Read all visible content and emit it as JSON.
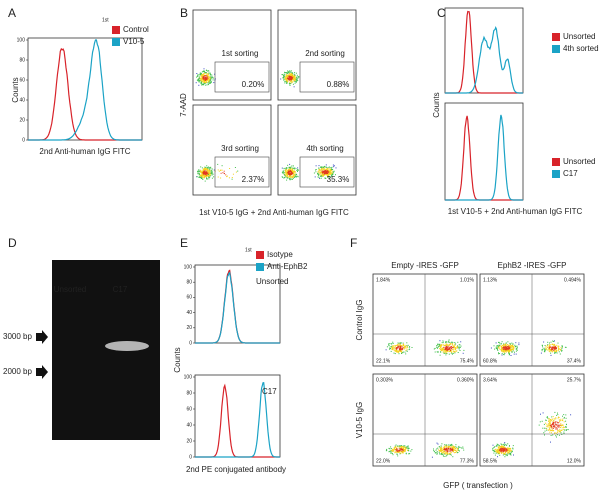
{
  "panels": {
    "A": {
      "label": "A",
      "legend_title": "1st",
      "legend": [
        "Control",
        "V10-5"
      ],
      "y_label": "Counts",
      "y_ticks": [
        0,
        20,
        40,
        60,
        80,
        100
      ],
      "x_label": "2nd Anti-human IgG FITC"
    },
    "B": {
      "label": "B",
      "y_label": "7-AAD",
      "gates": [
        {
          "name": "1st sorting",
          "percent": "0.20%"
        },
        {
          "name": "2nd sorting",
          "percent": "0.88%"
        },
        {
          "name": "3rd sorting",
          "percent": "2.37%"
        },
        {
          "name": "4th sorting",
          "percent": "35.3%"
        }
      ],
      "x_label": "1st V10-5 IgG + 2nd Anti-human IgG FITC"
    },
    "C": {
      "label": "C",
      "legend_top": [
        "Unsorted",
        "4th sorted"
      ],
      "legend_bottom": [
        "Unsorted",
        "C17"
      ],
      "y_label": "Counts",
      "x_label": "1st V10-5 + 2nd Anti-human IgG FITC"
    },
    "D": {
      "label": "D",
      "lanes": [
        "Unsorted",
        "C17"
      ],
      "markers": [
        "3000 bp",
        "2000 bp"
      ]
    },
    "E": {
      "label": "E",
      "legend_title": "1st",
      "legend": [
        "Isotype",
        "Anti-EphB2"
      ],
      "top_title": "Unsorted",
      "bottom_title": "C17",
      "y_label": "Counts",
      "y_ticks": [
        0,
        20,
        40,
        60,
        80,
        100
      ],
      "x_label": "2nd PE conjugated antibody"
    },
    "F": {
      "label": "F",
      "columns": [
        "Empty -IRES -GFP",
        "EphB2 -IRES -GFP"
      ],
      "rows": [
        "Control IgG",
        "V10-5 IgG"
      ],
      "quadrants": [
        [
          "1.84%",
          "1.01%",
          "22.1%",
          "75.4%"
        ],
        [
          "1.13%",
          "0.494%",
          "60.8%",
          "37.4%"
        ],
        [
          "0.303%",
          "0.360%",
          "22.0%",
          "77.3%"
        ],
        [
          "3.64%",
          "25.7%",
          "58.5%",
          "12.0%"
        ]
      ],
      "x_label": "GFP ( transfection )"
    }
  }
}
